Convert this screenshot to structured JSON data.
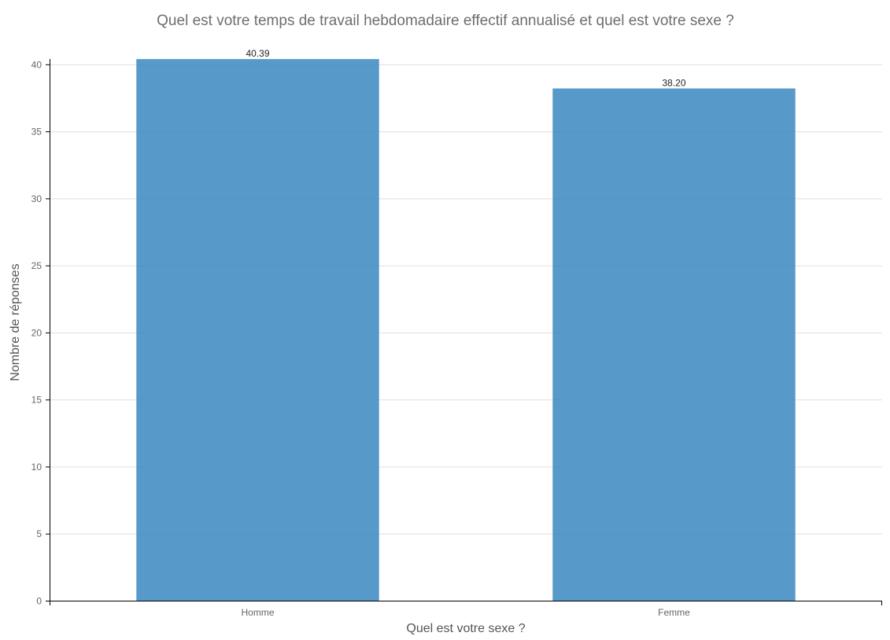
{
  "chart_data": {
    "type": "bar",
    "title": "Quel est votre temps de travail hebdomadaire effectif annualisé et quel est votre sexe ?",
    "xlabel": "Quel est votre sexe ?",
    "ylabel": "Nombre de réponses",
    "categories": [
      "Homme",
      "Femme"
    ],
    "values": [
      40.39,
      38.2
    ],
    "value_labels": [
      "40.39",
      "38.20"
    ],
    "ylim": [
      0,
      40.4
    ],
    "yticks": [
      0,
      5,
      10,
      15,
      20,
      25,
      30,
      35,
      40
    ],
    "grid": true,
    "legend": "none",
    "bar_color": "#3a87bf"
  }
}
